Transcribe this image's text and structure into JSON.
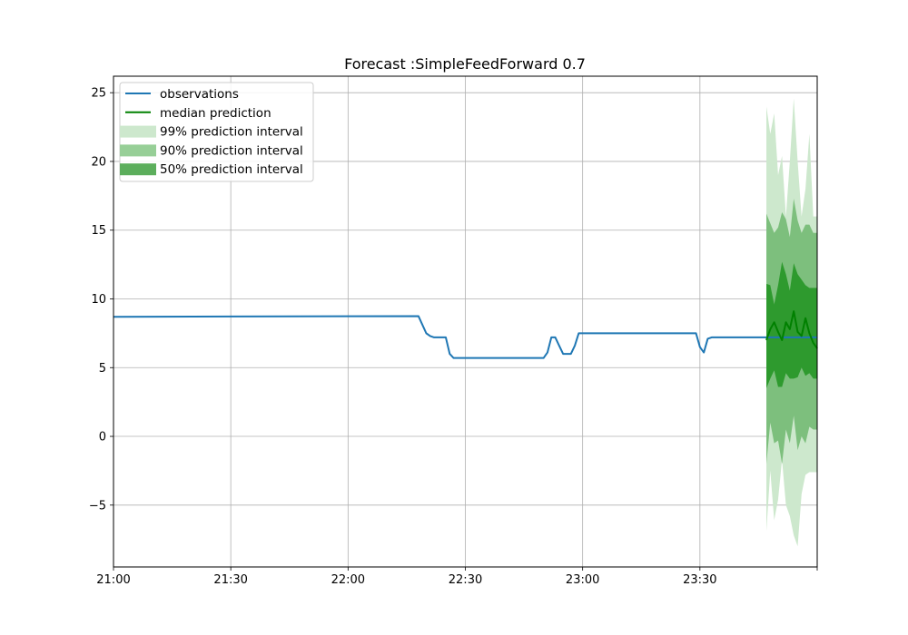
{
  "chart_data": {
    "type": "line",
    "title": "Forecast :SimpleFeedForward 0.7",
    "xlabel": "",
    "ylabel": "",
    "x_unit": "time (HH:MM)",
    "xlim": [
      "21:00",
      "24:00"
    ],
    "ylim": [
      -9.5,
      26.2
    ],
    "x_ticks": [
      "21:00",
      "21:30",
      "22:00",
      "22:30",
      "23:00",
      "23:30",
      ""
    ],
    "y_ticks": [
      -5,
      0,
      5,
      10,
      15,
      20,
      25
    ],
    "y_tick_labels": [
      "−5",
      "0",
      "5",
      "10",
      "15",
      "20",
      "25"
    ],
    "grid": true,
    "legend_position": "upper-left",
    "colors": {
      "observations": "#1f77b4",
      "median": "#008000",
      "pi99": "#cde8cd",
      "pi90": "#7dbf7d",
      "pi50": "#2e9a2e"
    },
    "legend": [
      {
        "label": "observations",
        "kind": "line",
        "color": "#1f77b4"
      },
      {
        "label": "median prediction",
        "kind": "line",
        "color": "#008000"
      },
      {
        "label": "99% prediction interval",
        "kind": "patch",
        "color": "#cde8cd"
      },
      {
        "label": "90% prediction interval",
        "kind": "patch",
        "color": "#97cf97"
      },
      {
        "label": "50% prediction interval",
        "kind": "patch",
        "color": "#5cae5c"
      }
    ],
    "observations": {
      "name": "observations",
      "x": [
        "21:00",
        "22:18",
        "22:20",
        "22:21",
        "22:22",
        "22:25",
        "22:26",
        "22:27",
        "22:28",
        "22:40",
        "22:50",
        "22:51",
        "22:52",
        "22:53",
        "22:54",
        "22:55",
        "22:56",
        "22:57",
        "22:58",
        "22:59",
        "23:00",
        "23:10",
        "23:20",
        "23:29",
        "23:30",
        "23:31",
        "23:32",
        "23:33",
        "23:35",
        "23:40",
        "23:45",
        "23:50",
        "23:55",
        "24:00"
      ],
      "y": [
        8.7,
        8.75,
        7.5,
        7.3,
        7.2,
        7.2,
        6.0,
        5.7,
        5.7,
        5.7,
        5.7,
        6.1,
        7.2,
        7.2,
        6.6,
        6.0,
        6.0,
        6.0,
        6.6,
        7.5,
        7.5,
        7.5,
        7.5,
        7.5,
        6.5,
        6.1,
        7.1,
        7.2,
        7.2,
        7.2,
        7.2,
        7.2,
        7.2,
        7.2
      ]
    },
    "forecast": {
      "x": [
        "23:47",
        "23:48",
        "23:49",
        "23:50",
        "23:51",
        "23:52",
        "23:53",
        "23:54",
        "23:55",
        "23:56",
        "23:57",
        "23:58",
        "23:59",
        "24:00"
      ],
      "median": [
        7.0,
        7.8,
        8.3,
        7.6,
        7.0,
        8.3,
        7.8,
        9.1,
        7.6,
        7.3,
        8.6,
        7.5,
        6.8,
        6.4
      ],
      "p99_low": [
        -6.9,
        -2.5,
        -6.1,
        -4.6,
        -1.7,
        -5.0,
        -5.8,
        -7.2,
        -8.0,
        -4.2,
        -2.8,
        -2.6,
        -2.6,
        -2.6
      ],
      "p99_high": [
        24.0,
        22.0,
        23.5,
        19.0,
        20.4,
        16.0,
        20.0,
        24.6,
        20.0,
        16.0,
        18.0,
        22.0,
        16.0,
        16.0
      ],
      "p90_low": [
        -2.0,
        1.0,
        -0.5,
        -0.3,
        -2.0,
        0.5,
        -0.5,
        1.5,
        -1.0,
        0.0,
        -0.5,
        0.7,
        0.5,
        0.5
      ],
      "p90_high": [
        16.2,
        15.5,
        14.8,
        15.2,
        16.3,
        15.8,
        14.5,
        17.3,
        15.7,
        14.8,
        15.4,
        15.4,
        14.8,
        14.8
      ],
      "p50_low": [
        3.5,
        4.2,
        4.8,
        3.6,
        3.6,
        4.6,
        4.2,
        4.2,
        4.3,
        5.0,
        4.4,
        4.6,
        4.2,
        4.2
      ],
      "p50_high": [
        11.1,
        11.0,
        9.6,
        11.0,
        12.7,
        11.8,
        10.6,
        12.6,
        11.8,
        11.4,
        11.0,
        10.8,
        10.8,
        10.8
      ]
    }
  }
}
